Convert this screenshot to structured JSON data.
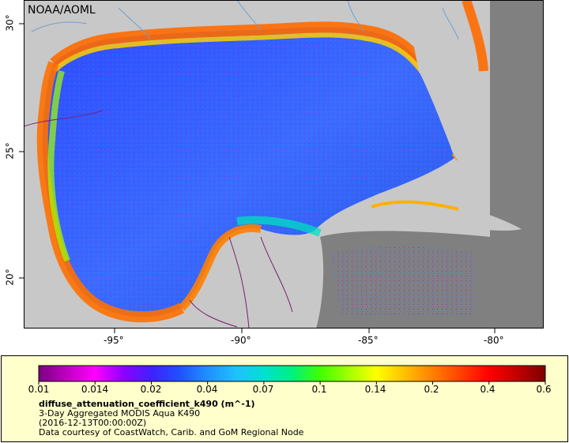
{
  "map": {
    "credit": "NOAA/AOML",
    "x_ticks": [
      "-95°",
      "-90°",
      "-85°",
      "-80°"
    ],
    "y_ticks": [
      "30°",
      "25°",
      "20°"
    ],
    "colors": {
      "land": "#c8c8c8",
      "nodata": "#808080",
      "frame": "#000000",
      "borders": "#7a1f6e",
      "rivers": "#6ea0d0"
    }
  },
  "legend": {
    "variable": "diffuse_attenuation_coefficient_k490 (m^-1)",
    "line1": "3-Day Aggregated MODIS Aqua K490",
    "line2": "(2016-12-13T00:00:00Z)",
    "line3": "Data courtesy of CoastWatch, Carib. and GoM Regional Node",
    "tick_labels": [
      "0.01",
      "0.014",
      "0.02",
      "0.04",
      "0.07",
      "0.1",
      "0.14",
      "0.2",
      "0.4",
      "0.6"
    ],
    "colormap": [
      "#7a0080",
      "#c000c0",
      "#ff00ff",
      "#9000ff",
      "#4020ff",
      "#2050ff",
      "#2090ff",
      "#20c0ff",
      "#00e0d0",
      "#00f080",
      "#40ff00",
      "#a0ff00",
      "#ffff00",
      "#ffc000",
      "#ff8000",
      "#ff4000",
      "#ff0000",
      "#c00000",
      "#800000"
    ]
  }
}
